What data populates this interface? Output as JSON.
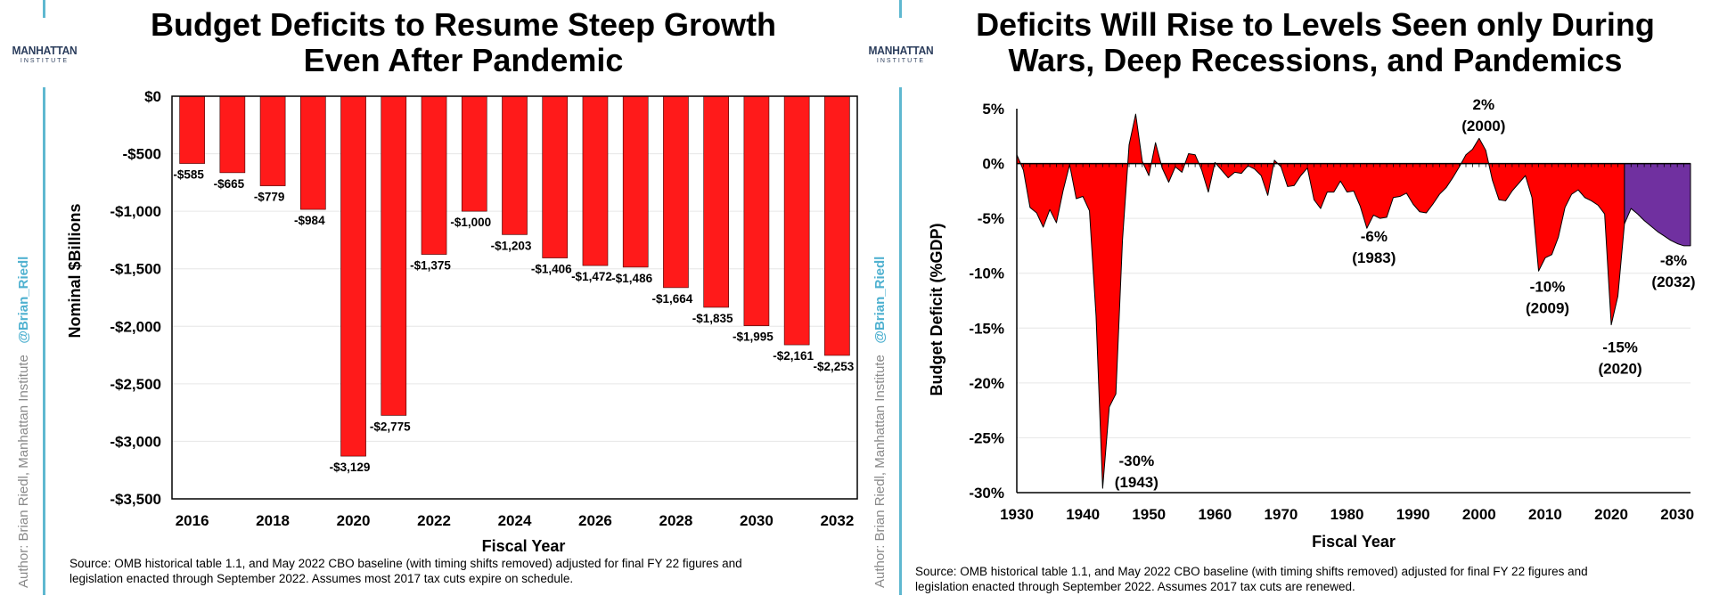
{
  "left_panel": {
    "logo": {
      "line1": "MANHATTAN",
      "line2": "INSTITUTE"
    },
    "author": {
      "text": "Author: Brian Riedl, Manhattan Institute",
      "handle": "@Brian_Riedl"
    },
    "title_line1": "Budget Deficits to Resume Steep Growth",
    "title_line2": "Even After Pandemic",
    "source_line1": "Source: OMB historical table 1.1, and May 2022 CBO baseline (with timing shifts removed) adjusted for final FY 22 figures and",
    "source_line2": "legislation enacted through September 2022. Assumes most 2017 tax cuts expire on schedule.",
    "colors": {
      "bar": "#ff1a1a"
    }
  },
  "right_panel": {
    "logo": {
      "line1": "MANHATTAN",
      "line2": "INSTITUTE"
    },
    "author": {
      "text": "Author: Brian Riedl, Manhattan Institute",
      "handle": "@Brian_Riedl"
    },
    "title_line1": "Deficits Will Rise to Levels Seen only During",
    "title_line2": "Wars, Deep Recessions, and Pandemics",
    "source_line1": "Source: OMB historical table 1.1, and May 2022 CBO baseline (with timing shifts removed) adjusted for final FY 22 figures and",
    "source_line2": "legislation enacted through September 2022. Assumes 2017 tax cuts are renewed.",
    "colors": {
      "historical": "#ff0000",
      "projected": "#7030a0"
    }
  },
  "chart_data": [
    {
      "type": "bar",
      "title": "Budget Deficits to Resume Steep Growth Even After Pandemic",
      "xlabel": "Fiscal Year",
      "ylabel": "Nominal $Billions",
      "categories": [
        2016,
        2017,
        2018,
        2019,
        2020,
        2021,
        2022,
        2023,
        2024,
        2025,
        2026,
        2027,
        2028,
        2029,
        2030,
        2031,
        2032
      ],
      "values": [
        -585,
        -665,
        -779,
        -984,
        -3129,
        -2775,
        -1375,
        -1000,
        -1203,
        -1406,
        -1472,
        -1486,
        -1664,
        -1835,
        -1995,
        -2161,
        -2253
      ],
      "data_labels": [
        "-$585",
        "-$665",
        "-$779",
        "-$984",
        "-$3,129",
        "-$2,775",
        "-$1,375",
        "-$1,000",
        "-$1,203",
        "-$1,406",
        "-$1,472",
        "-$1,486",
        "-$1,664",
        "-$1,835",
        "-$1,995",
        "-$2,161",
        "-$2,253"
      ],
      "x_tick_labels": [
        "2016",
        "2018",
        "2020",
        "2022",
        "2024",
        "2026",
        "2028",
        "2030",
        "2032"
      ],
      "y_ticks": [
        0,
        -500,
        -1000,
        -1500,
        -2000,
        -2500,
        -3000,
        -3500
      ],
      "y_tick_labels": [
        "$0",
        "-$500",
        "-$1,000",
        "-$1,500",
        "-$2,000",
        "-$2,500",
        "-$3,000",
        "-$3,500"
      ],
      "ylim": [
        -3500,
        0
      ],
      "grid": true
    },
    {
      "type": "area",
      "title": "Deficits Will Rise to Levels Seen only During Wars, Deep Recessions, and Pandemics",
      "xlabel": "Fiscal Year",
      "ylabel": "Budget Deficit (%GDP)",
      "xlim": [
        1930,
        2032
      ],
      "ylim": [
        -30,
        5
      ],
      "x_ticks": [
        1930,
        1940,
        1950,
        1960,
        1970,
        1980,
        1990,
        2000,
        2010,
        2020,
        2030
      ],
      "x_tick_labels": [
        "1930",
        "1940",
        "1950",
        "1960",
        "1970",
        "1980",
        "1990",
        "2000",
        "2010",
        "2020",
        "2030"
      ],
      "y_ticks": [
        5,
        0,
        -5,
        -10,
        -15,
        -20,
        -25,
        -30
      ],
      "y_tick_labels": [
        "5%",
        "0%",
        "-5%",
        "-10%",
        "-15%",
        "-20%",
        "-25%",
        "-30%"
      ],
      "grid": true,
      "series": [
        {
          "x": [
            1930,
            1931,
            1932,
            1933,
            1934,
            1935,
            1936,
            1937,
            1938,
            1939,
            1940,
            1941,
            1942,
            1943,
            1944,
            1945,
            1946,
            1947,
            1948,
            1949,
            1950,
            1951,
            1952,
            1953,
            1954,
            1955,
            1956,
            1957,
            1958,
            1959,
            1960,
            1961,
            1962,
            1963,
            1964,
            1965,
            1966,
            1967,
            1968,
            1969,
            1970,
            1971,
            1972,
            1973,
            1974,
            1975,
            1976,
            1977,
            1978,
            1979,
            1980,
            1981,
            1982,
            1983,
            1984,
            1985,
            1986,
            1987,
            1988,
            1989,
            1990,
            1991,
            1992,
            1993,
            1994,
            1995,
            1996,
            1997,
            1998,
            1999,
            2000,
            2001,
            2002,
            2003,
            2004,
            2005,
            2006,
            2007,
            2008,
            2009,
            2010,
            2011,
            2012,
            2013,
            2014,
            2015,
            2016,
            2017,
            2018,
            2019,
            2020,
            2021,
            2022
          ],
          "y": [
            0.8,
            -0.6,
            -4.0,
            -4.5,
            -5.8,
            -4.2,
            -5.4,
            -2.5,
            -0.1,
            -3.2,
            -3.0,
            -4.3,
            -13.9,
            -29.6,
            -22.2,
            -21.0,
            -7.0,
            1.7,
            4.5,
            0.2,
            -1.1,
            1.9,
            -0.4,
            -1.7,
            -0.3,
            -0.8,
            0.9,
            0.8,
            -0.6,
            -2.6,
            0.1,
            -0.6,
            -1.3,
            -0.8,
            -0.9,
            -0.2,
            -0.5,
            -1.1,
            -2.9,
            0.3,
            -0.3,
            -2.1,
            -2.0,
            -1.1,
            -0.4,
            -3.3,
            -4.1,
            -2.6,
            -2.6,
            -1.6,
            -2.6,
            -2.5,
            -3.9,
            -5.9,
            -4.7,
            -5.0,
            -4.9,
            -3.1,
            -3.0,
            -2.7,
            -3.7,
            -4.4,
            -4.5,
            -3.7,
            -2.8,
            -2.2,
            -1.3,
            -0.3,
            0.8,
            1.3,
            2.3,
            1.2,
            -1.5,
            -3.3,
            -3.4,
            -2.5,
            -1.8,
            -1.1,
            -3.1,
            -9.8,
            -8.6,
            -8.3,
            -6.7,
            -4.0,
            -2.8,
            -2.4,
            -3.1,
            -3.4,
            -3.8,
            -4.6,
            -14.7,
            -12.1,
            -5.5
          ]
        },
        {
          "x": [
            2022,
            2023,
            2024,
            2025,
            2026,
            2027,
            2028,
            2029,
            2030,
            2031,
            2032
          ],
          "y": [
            -5.5,
            -4.1,
            -4.6,
            -5.2,
            -5.7,
            -6.2,
            -6.6,
            -7.0,
            -7.3,
            -7.5,
            -7.5
          ]
        }
      ],
      "annotations": [
        {
          "label": "-30%",
          "sub": "(1943)",
          "x": 1943,
          "y": -29.6
        },
        {
          "label": "2%",
          "sub": "(2000)",
          "x": 2000,
          "y": 2.3
        },
        {
          "label": "-6%",
          "sub": "(1983)",
          "x": 1983,
          "y": -5.9
        },
        {
          "label": "-10%",
          "sub": "(2009)",
          "x": 2009,
          "y": -9.8
        },
        {
          "label": "-15%",
          "sub": "(2020)",
          "x": 2020,
          "y": -14.7
        },
        {
          "label": "-8%",
          "sub": "(2032)",
          "x": 2032,
          "y": -7.5
        }
      ]
    }
  ]
}
